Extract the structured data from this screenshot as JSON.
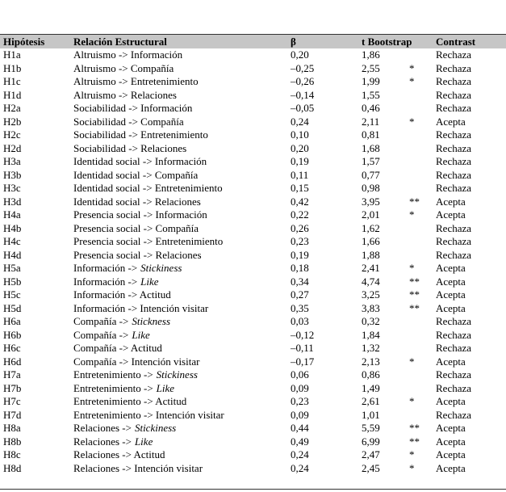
{
  "table": {
    "header": [
      "Hipótesis",
      "Relación Estructural",
      "β",
      "t Bootstrap",
      "Contrast"
    ],
    "rows": [
      {
        "h": "H1a",
        "rel": "Altruismo -> Información",
        "beta": "0,20",
        "t": "1,86",
        "c": "Rechaza"
      },
      {
        "h": "H1b",
        "rel": "Altruismo -> Compañía",
        "beta": "–0,25",
        "t": "2,55",
        "sig": "*",
        "c": "Rechaza"
      },
      {
        "h": "H1c",
        "rel": "Altruismo -> Entretenimiento",
        "beta": "–0,26",
        "t": "1,99",
        "sig": "*",
        "c": "Rechaza"
      },
      {
        "h": "H1d",
        "rel": "Altruismo -> Relaciones",
        "beta": "–0,14",
        "t": "1,55",
        "c": "Rechaza"
      },
      {
        "h": "H2a",
        "rel": "Sociabilidad -> Información",
        "beta": "–0,05",
        "t": "0,46",
        "c": "Rechaza"
      },
      {
        "h": "H2b",
        "rel": "Sociabilidad -> Compañía",
        "beta": "0,24",
        "t": "2,11",
        "sig": "*",
        "c": "Acepta"
      },
      {
        "h": "H2c",
        "rel": "Sociabilidad -> Entretenimiento",
        "beta": "0,10",
        "t": "0,81",
        "c": "Rechaza"
      },
      {
        "h": "H2d",
        "rel": "Sociabilidad -> Relaciones",
        "beta": "0,20",
        "t": "1,68",
        "c": "Rechaza"
      },
      {
        "h": "H3a",
        "rel": "Identidad social -> Información",
        "beta": "0,19",
        "t": "1,57",
        "c": "Rechaza"
      },
      {
        "h": "H3b",
        "rel": "Identidad social -> Compañía",
        "beta": "0,11",
        "t": "0,77",
        "c": "Rechaza"
      },
      {
        "h": "H3c",
        "rel": "Identidad social -> Entretenimiento",
        "beta": "0,15",
        "t": "0,98",
        "c": "Rechaza"
      },
      {
        "h": "H3d",
        "rel": "Identidad social -> Relaciones",
        "beta": "0,42",
        "t": "3,95",
        "sig": "**",
        "c": "Acepta"
      },
      {
        "h": "H4a",
        "rel": "Presencia social -> Información",
        "beta": "0,22",
        "t": "2,01",
        "sig": "*",
        "c": "Acepta"
      },
      {
        "h": "H4b",
        "rel": "Presencia social -> Compañía",
        "beta": "0,26",
        "t": "1,62",
        "c": "Rechaza"
      },
      {
        "h": "H4c",
        "rel": "Presencia social -> Entretenimiento",
        "beta": "0,23",
        "t": "1,66",
        "c": "Rechaza"
      },
      {
        "h": "H4d",
        "rel": "Presencia social -> Relaciones",
        "beta": "0,19",
        "t": "1,88",
        "c": "Rechaza"
      },
      {
        "h": "H5a",
        "rel": "Información ->",
        "em": "Stickiness",
        "beta": "0,18",
        "t": "2,41",
        "sig": "*",
        "c": "Acepta"
      },
      {
        "h": "H5b",
        "rel": "Información ->",
        "em": "Like",
        "beta": "0,34",
        "t": "4,74",
        "sig": "**",
        "c": "Acepta"
      },
      {
        "h": "H5c",
        "rel": "Información -> Actitud",
        "beta": "0,27",
        "t": "3,25",
        "sig": "**",
        "c": "Acepta"
      },
      {
        "h": "H5d",
        "rel": "Información -> Intención visitar",
        "beta": "0,35",
        "t": "3,83",
        "sig": "**",
        "c": "Acepta"
      },
      {
        "h": "H6a",
        "rel": "Compañía ->",
        "em": "Stickness",
        "beta": "0,03",
        "t": "0,32",
        "c": "Rechaza"
      },
      {
        "h": "H6b",
        "rel": "Compañía ->",
        "em": "Like",
        "beta": "–0,12",
        "t": "1,84",
        "c": "Rechaza"
      },
      {
        "h": "H6c",
        "rel": "Compañía -> Actitud",
        "beta": "–0,11",
        "t": "1,32",
        "c": "Rechaza"
      },
      {
        "h": "H6d",
        "rel": "Compañía -> Intención visitar",
        "beta": "–0,17",
        "t": "2,13",
        "sig": "*",
        "c": "Acepta"
      },
      {
        "h": "H7a",
        "rel": "Entretenimiento ->",
        "em": "Stickiness",
        "beta": "0,06",
        "t": "0,86",
        "c": "Rechaza"
      },
      {
        "h": "H7b",
        "rel": "Entretenimiento ->",
        "em": "Like",
        "beta": "0,09",
        "t": "1,49",
        "c": "Rechaza"
      },
      {
        "h": "H7c",
        "rel": "Entretenimiento -> Actitud",
        "beta": "0,23",
        "t": "2,61",
        "sig": "*",
        "c": "Acepta"
      },
      {
        "h": "H7d",
        "rel": "Entretenimiento -> Intención visitar",
        "beta": "0,09",
        "t": "1,01",
        "c": "Rechaza"
      },
      {
        "h": "H8a",
        "rel": "Relaciones ->",
        "em": "Stickiness",
        "beta": "0,44",
        "t": "5,59",
        "sig": "**",
        "c": "Acepta"
      },
      {
        "h": "H8b",
        "rel": "Relaciones ->",
        "em": "Like",
        "beta": "0,49",
        "t": "6,99",
        "sig": "**",
        "c": "Acepta"
      },
      {
        "h": "H8c",
        "rel": "Relaciones -> Actitud",
        "beta": "0,24",
        "t": "2,47",
        "sig": "*",
        "c": "Acepta"
      },
      {
        "h": "H8d",
        "rel": "Relaciones -> Intención visitar",
        "beta": "0,24",
        "t": "2,45",
        "sig": "*",
        "c": "Acepta"
      }
    ]
  }
}
